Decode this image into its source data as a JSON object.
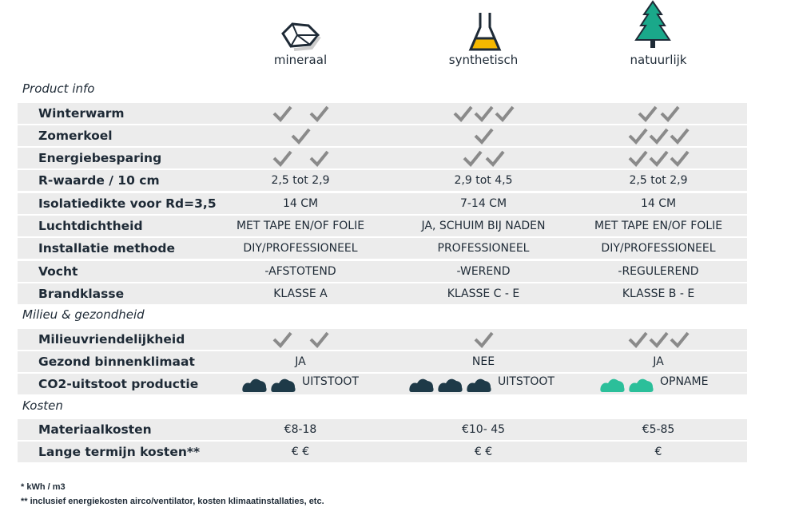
{
  "header": {
    "columns": [
      "mineraal",
      "synthetisch",
      "natuurlijk"
    ]
  },
  "sections": [
    {
      "title": "Product info",
      "rows": [
        {
          "label": "Winterwarm"
        },
        {
          "label": "Zomerkoel"
        },
        {
          "label": "Energiebesparing"
        },
        {
          "label": "R-waarde / 10 cm",
          "cells": [
            "2,5 tot 2,9",
            "2,9 tot 4,5",
            "2,5 tot 2,9"
          ]
        },
        {
          "label": "Isolatiedikte voor Rd=3,5",
          "cells": [
            "14 CM",
            "7-14 CM",
            "14 CM"
          ]
        },
        {
          "label": "Luchtdichtheid",
          "cells": [
            "MET TAPE EN/OF FOLIE",
            "JA, SCHUIM BIJ NADEN",
            "MET TAPE EN/OF FOLIE"
          ]
        },
        {
          "label": "Installatie methode",
          "cells": [
            "DIY/PROFESSIONEEL",
            "PROFESSIONEEL",
            "DIY/PROFESSIONEEL"
          ]
        },
        {
          "label": "Vocht",
          "cells": [
            "-AFSTOTEND",
            "-WEREND",
            "-REGULEREND"
          ]
        },
        {
          "label": "Brandklasse",
          "cells": [
            "KLASSE A",
            "KLASSE C - E",
            "KLASSE B - E"
          ]
        }
      ]
    },
    {
      "title": "Milieu & gezondheid",
      "rows": [
        {
          "label": "Milieuvriendelijkheid"
        },
        {
          "label": "Gezond binnenklimaat",
          "cells": [
            "JA",
            "NEE",
            "JA"
          ]
        },
        {
          "label": "CO2-uitstoot productie",
          "cells": [
            "UITSTOOT",
            "UITSTOOT",
            "OPNAME"
          ]
        }
      ]
    },
    {
      "title": "Kosten",
      "rows": [
        {
          "label": "Materiaalkosten",
          "cells": [
            "€8-18",
            "€10- 45",
            "€5-85"
          ]
        },
        {
          "label": "Lange termijn kosten**",
          "cells": [
            "€ €",
            "€ €",
            "€"
          ]
        }
      ]
    }
  ],
  "footnotes": [
    "* kWh / m3",
    "** inclusief energiekosten airco/ventilator, kosten klimaatinstallaties, etc."
  ]
}
